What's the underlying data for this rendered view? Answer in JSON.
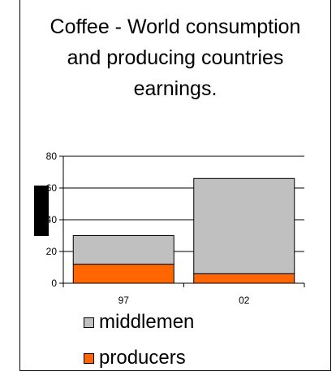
{
  "chart_data": {
    "type": "bar",
    "stacked": true,
    "title": "Coffee - World consumption and producing countries earnings.",
    "title_lines": [
      "Coffee - World consumption",
      "and producing countries",
      "earnings."
    ],
    "categories": [
      "97",
      "02"
    ],
    "series": [
      {
        "name": "producers",
        "values": [
          12,
          6
        ],
        "color": "#ff6600"
      },
      {
        "name": "middlemen",
        "values": [
          18,
          60
        ],
        "color": "#c0c0c0"
      }
    ],
    "ylim": [
      0,
      80
    ],
    "yticks": [
      0,
      20,
      40,
      60,
      80
    ],
    "ytick_labels": [
      "0",
      "20",
      "40",
      "60",
      "80"
    ],
    "grid": true,
    "legend": "bottom",
    "xlabel": "",
    "ylabel": ""
  }
}
